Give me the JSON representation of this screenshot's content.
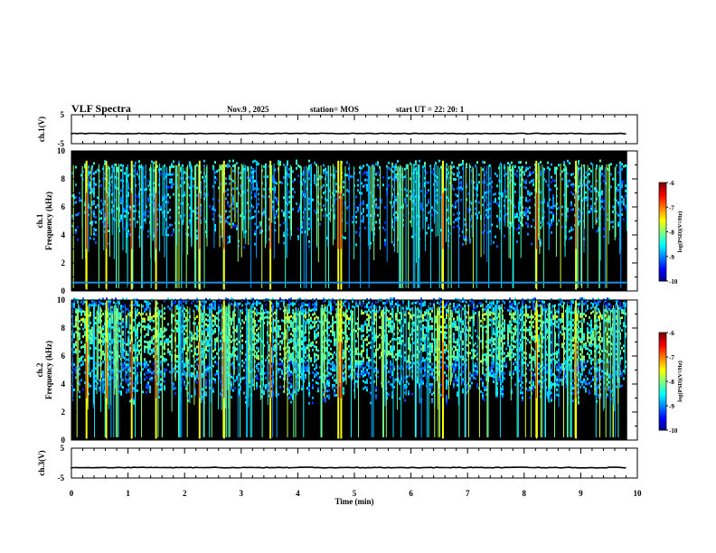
{
  "header": {
    "title": "VLF Spectra",
    "date": "Nov.9 , 2025",
    "station": "station= MOS",
    "start": "start UT = 22: 20: 1"
  },
  "chart_data": [
    {
      "type": "line",
      "panel": "ch1-voltage",
      "ylabel": "ch.1(V)",
      "ylim": [
        -5,
        5
      ],
      "yticks": [
        "5",
        "-5"
      ],
      "xlim": [
        0,
        10
      ],
      "series": [
        {
          "name": "ch.1",
          "level": -1.5
        }
      ]
    },
    {
      "type": "heatmap",
      "panel": "ch1-spectrogram",
      "ylabel": "ch.1 Frequency (kHz)",
      "ylim": [
        0,
        10
      ],
      "yticks": [
        "0",
        "2",
        "4",
        "6",
        "8",
        "10"
      ],
      "xlim": [
        0,
        10
      ],
      "colorbar": {
        "label": "log(PSD)(V²/Hz)",
        "ticks": [
          "-6",
          "-7",
          "-8",
          "-9",
          "-10"
        ],
        "range": [
          -10,
          -6
        ]
      },
      "band_top_khz": 9.2,
      "line_khz": 0.6,
      "strong_bursts_min": [
        0.25,
        0.6,
        1.05,
        1.48,
        2.25,
        2.68,
        3.5,
        4.7,
        4.75,
        6.55,
        8.2,
        8.9
      ]
    },
    {
      "type": "heatmap",
      "panel": "ch2-spectrogram",
      "ylabel": "ch.2 Frequency (kHz)",
      "ylim": [
        0,
        10
      ],
      "yticks": [
        "0",
        "2",
        "4",
        "6",
        "8",
        "10"
      ],
      "xlim": [
        0,
        10
      ],
      "colorbar": {
        "label": "log(PSD)(V²/Hz)",
        "ticks": [
          "-6",
          "-7",
          "-8",
          "-9",
          "-10"
        ],
        "range": [
          -10,
          -6
        ]
      },
      "band_top_khz": 10,
      "strong_bursts_min": [
        0.25,
        0.6,
        1.05,
        1.48,
        2.25,
        2.68,
        3.5,
        4.7,
        4.75,
        6.55,
        8.2,
        8.9
      ]
    },
    {
      "type": "line",
      "panel": "ch3-voltage",
      "ylabel": "ch.3(V)",
      "ylim": [
        -5,
        5
      ],
      "yticks": [
        "5",
        "-5"
      ],
      "xlim": [
        0,
        10
      ],
      "series": [
        {
          "name": "ch.3",
          "level": -1.5
        }
      ]
    }
  ],
  "xaxis": {
    "label": "Time (min)",
    "ticks": [
      "0",
      "1",
      "2",
      "3",
      "4",
      "5",
      "6",
      "7",
      "8",
      "9",
      "10"
    ],
    "data_end_min": 9.82
  },
  "colors": {
    "background": "#000000",
    "frame": "#000000"
  }
}
